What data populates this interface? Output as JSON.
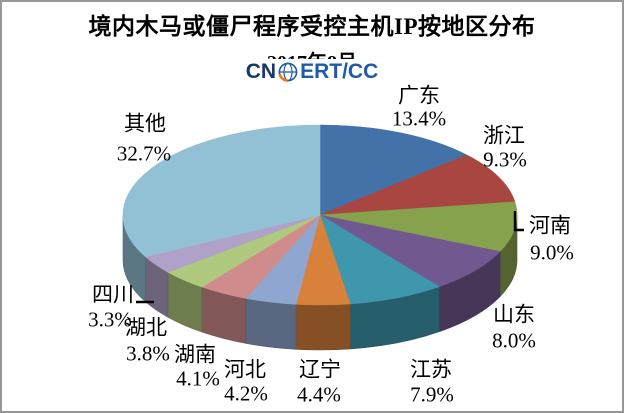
{
  "chart_data": {
    "type": "pie",
    "style": "3d",
    "title": "境内木马或僵尸程序受控主机IP按地区分布",
    "subtitle": "2017年8月",
    "start_angle_deg": 0,
    "direction": "clockwise",
    "legend": "none",
    "labels": [
      "广东",
      "浙江",
      "河南",
      "山东",
      "江苏",
      "辽宁",
      "河北",
      "湖南",
      "湖北",
      "四川",
      "其他"
    ],
    "values_percent": [
      13.4,
      9.3,
      9.0,
      8.0,
      7.9,
      4.4,
      4.2,
      4.1,
      3.8,
      3.3,
      32.7
    ],
    "display_labels": [
      "13.4%",
      "9.3%",
      "9.0%",
      "8.0%",
      "7.9%",
      "4.4%",
      "4.2%",
      "4.1%",
      "3.8%",
      "3.3%",
      "32.7%"
    ],
    "colors": [
      "#4272A8",
      "#AA4642",
      "#86A24D",
      "#71588F",
      "#3F97AE",
      "#D8813A",
      "#8FA6D0",
      "#D08C8C",
      "#AFC97E",
      "#AFA1C7",
      "#92C0D5"
    ]
  },
  "logo": {
    "text_prefix": "CN",
    "text_suffix": "ERT/CC",
    "navy_color": "#16376E",
    "blue_color": "#1E5AA8",
    "orange_color": "#E87A24"
  }
}
